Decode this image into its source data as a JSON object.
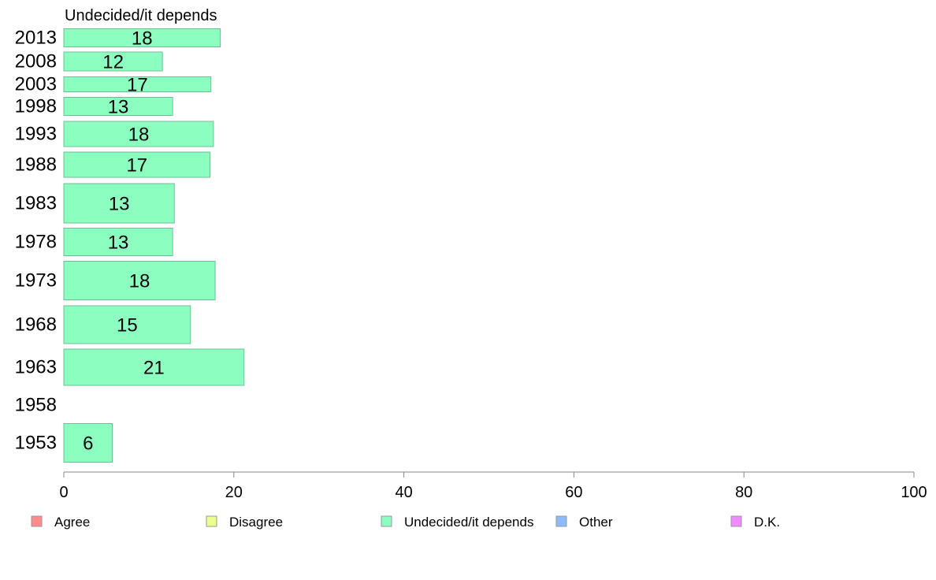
{
  "chart_data": {
    "type": "bar",
    "orientation": "horizontal",
    "title": "Undecided/it depends",
    "categories": [
      "2013",
      "2008",
      "2003",
      "1998",
      "1993",
      "1988",
      "1983",
      "1978",
      "1973",
      "1968",
      "1963",
      "1958",
      "1953"
    ],
    "series": [
      {
        "name": "Undecided/it depends",
        "color": "#8cffc0",
        "values": [
          18,
          12,
          17,
          13,
          18,
          17,
          13,
          13,
          18,
          15,
          21,
          null,
          6
        ],
        "exact_values": [
          18.4,
          11.6,
          17.3,
          12.8,
          17.6,
          17.2,
          13.0,
          12.8,
          17.8,
          14.9,
          21.2,
          null,
          5.7
        ]
      }
    ],
    "xlim": [
      0,
      100
    ],
    "xticks": [
      0,
      20,
      40,
      60,
      80,
      100
    ],
    "xlabel": "",
    "ylabel": "",
    "grid": false,
    "legend": {
      "position": "bottom",
      "items": [
        {
          "label": "Agree",
          "color": "#ff8c8c"
        },
        {
          "label": "Disagree",
          "color": "#ecff8c"
        },
        {
          "label": "Undecided/it depends",
          "color": "#8cffc0"
        },
        {
          "label": "Other",
          "color": "#8cbcff"
        },
        {
          "label": "D.K.",
          "color": "#ec8cff"
        }
      ]
    }
  }
}
